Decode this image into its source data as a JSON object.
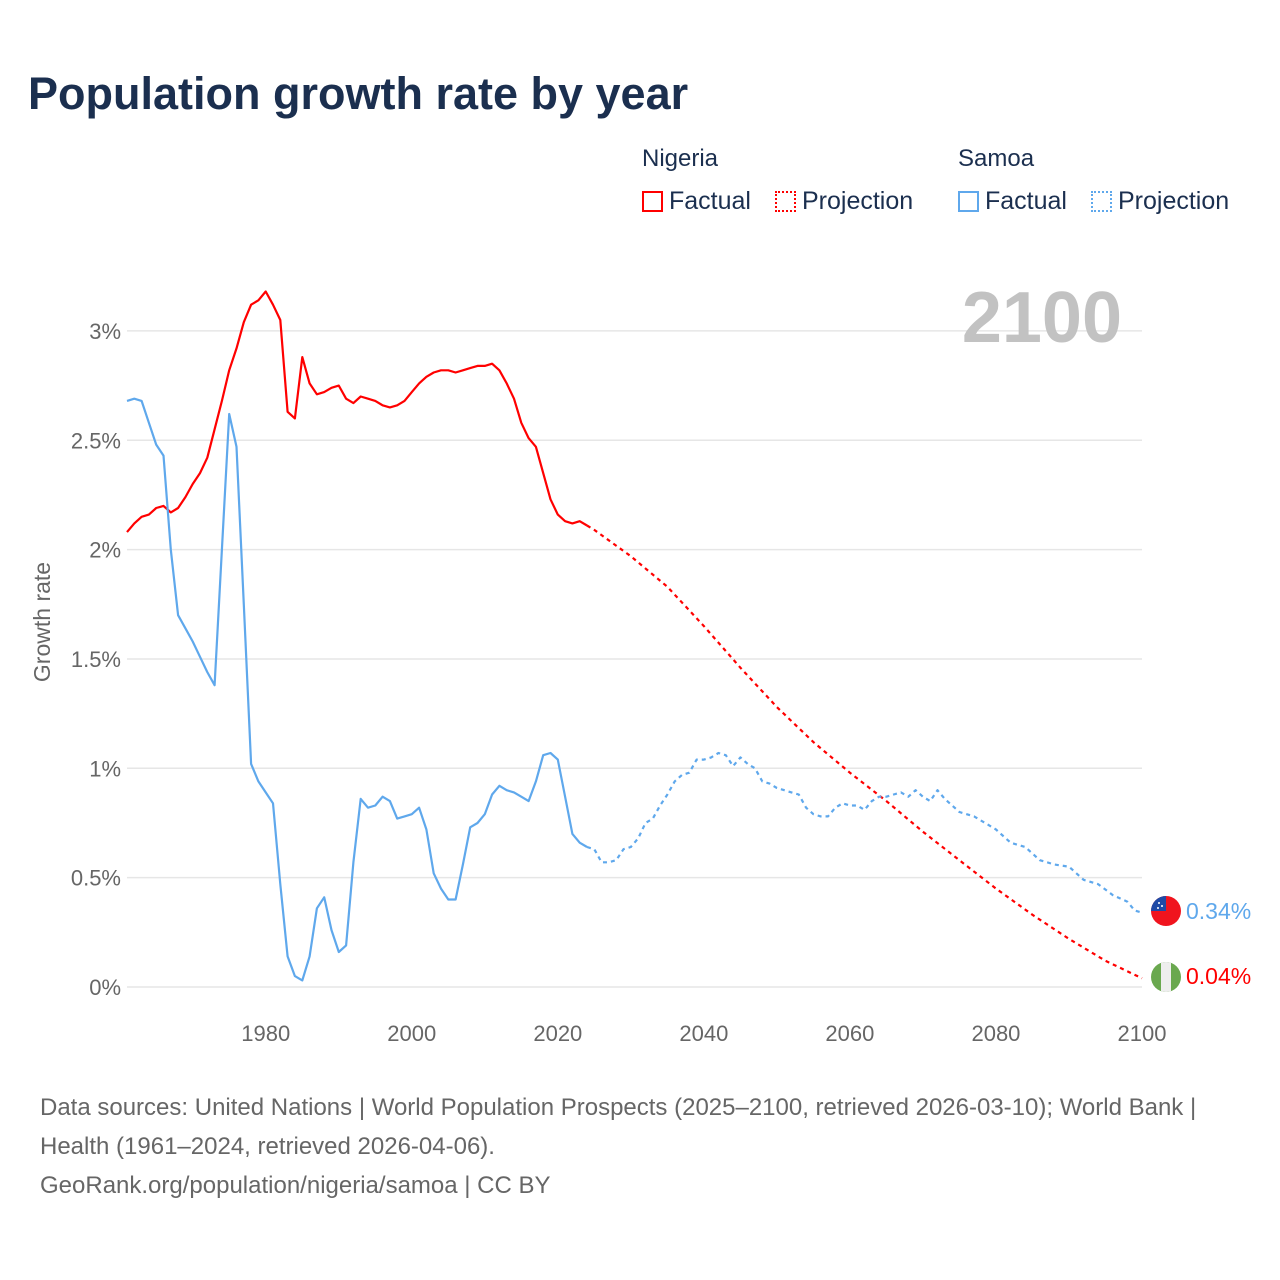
{
  "title": "Population growth rate by year",
  "legend": {
    "groups": [
      {
        "name": "Nigeria",
        "color": "#ff0000",
        "factual": "Factual",
        "projection": "Projection"
      },
      {
        "name": "Samoa",
        "color": "#5fa8ec",
        "factual": "Factual",
        "projection": "Projection"
      }
    ]
  },
  "year_display": "2100",
  "end_labels": {
    "samoa": "0.34%",
    "nigeria": "0.04%"
  },
  "footer": {
    "sources": "Data sources: United Nations | World Population Prospects (2025–2100, retrieved 2026-03-10); World Bank | Health (1961–2024, retrieved 2026-04-06).",
    "link": "GeoRank.org/population/nigeria/samoa | CC BY"
  },
  "chart_data": {
    "type": "line",
    "title": "Population growth rate by year",
    "xlabel": "",
    "ylabel": "Growth rate",
    "xlim": [
      1961,
      2100
    ],
    "ylim": [
      0,
      3.3
    ],
    "xticks": [
      1980,
      2000,
      2020,
      2040,
      2060,
      2080,
      2100
    ],
    "xtick_labels": [
      "1980",
      "2000",
      "2020",
      "2040",
      "2060",
      "2080",
      "2100"
    ],
    "yticks": [
      0,
      0.5,
      1,
      1.5,
      2,
      2.5,
      3
    ],
    "ytick_labels": [
      "0%",
      "0.5%",
      "1%",
      "1.5%",
      "2%",
      "2.5%",
      "3%"
    ],
    "grid": true,
    "legend_position": "top-right",
    "series": [
      {
        "name": "Nigeria Factual",
        "color": "#ff0000",
        "dashed": false,
        "x": [
          1961,
          1962,
          1963,
          1964,
          1965,
          1966,
          1967,
          1968,
          1969,
          1970,
          1971,
          1972,
          1973,
          1974,
          1975,
          1976,
          1977,
          1978,
          1979,
          1980,
          1981,
          1982,
          1983,
          1984,
          1985,
          1986,
          1987,
          1988,
          1989,
          1990,
          1991,
          1992,
          1993,
          1994,
          1995,
          1996,
          1997,
          1998,
          1999,
          2000,
          2001,
          2002,
          2003,
          2004,
          2005,
          2006,
          2007,
          2008,
          2009,
          2010,
          2011,
          2012,
          2013,
          2014,
          2015,
          2016,
          2017,
          2018,
          2019,
          2020,
          2021,
          2022,
          2023,
          2024
        ],
        "y": [
          2.08,
          2.12,
          2.15,
          2.16,
          2.19,
          2.2,
          2.17,
          2.19,
          2.24,
          2.3,
          2.35,
          2.42,
          2.55,
          2.68,
          2.82,
          2.92,
          3.04,
          3.12,
          3.14,
          3.18,
          3.12,
          3.05,
          2.63,
          2.6,
          2.88,
          2.76,
          2.71,
          2.72,
          2.74,
          2.75,
          2.69,
          2.67,
          2.7,
          2.69,
          2.68,
          2.66,
          2.65,
          2.66,
          2.68,
          2.72,
          2.76,
          2.79,
          2.81,
          2.82,
          2.82,
          2.81,
          2.82,
          2.83,
          2.84,
          2.84,
          2.85,
          2.82,
          2.76,
          2.69,
          2.58,
          2.51,
          2.47,
          2.35,
          2.23,
          2.16,
          2.13,
          2.12,
          2.13,
          2.11
        ]
      },
      {
        "name": "Nigeria Projection",
        "color": "#ff0000",
        "dashed": true,
        "x": [
          2024,
          2025,
          2030,
          2035,
          2040,
          2045,
          2050,
          2055,
          2060,
          2065,
          2070,
          2075,
          2080,
          2085,
          2090,
          2095,
          2100
        ],
        "y": [
          2.11,
          2.09,
          1.97,
          1.83,
          1.65,
          1.46,
          1.28,
          1.12,
          0.98,
          0.85,
          0.71,
          0.58,
          0.45,
          0.33,
          0.22,
          0.12,
          0.04
        ]
      },
      {
        "name": "Samoa Factual",
        "color": "#5fa8ec",
        "dashed": false,
        "x": [
          1961,
          1962,
          1963,
          1964,
          1965,
          1966,
          1967,
          1968,
          1969,
          1970,
          1971,
          1972,
          1973,
          1974,
          1975,
          1976,
          1977,
          1978,
          1979,
          1980,
          1981,
          1982,
          1983,
          1984,
          1985,
          1986,
          1987,
          1988,
          1989,
          1990,
          1991,
          1992,
          1993,
          1994,
          1995,
          1996,
          1997,
          1998,
          1999,
          2000,
          2001,
          2002,
          2003,
          2004,
          2005,
          2006,
          2007,
          2008,
          2009,
          2010,
          2011,
          2012,
          2013,
          2014,
          2015,
          2016,
          2017,
          2018,
          2019,
          2020,
          2021,
          2022,
          2023,
          2024
        ],
        "y": [
          2.68,
          2.69,
          2.68,
          2.58,
          2.48,
          2.43,
          2.0,
          1.7,
          1.64,
          1.58,
          1.51,
          1.44,
          1.38,
          2.0,
          2.62,
          2.47,
          1.75,
          1.02,
          0.94,
          0.89,
          0.84,
          0.47,
          0.14,
          0.05,
          0.03,
          0.14,
          0.36,
          0.41,
          0.26,
          0.16,
          0.19,
          0.57,
          0.86,
          0.82,
          0.83,
          0.87,
          0.85,
          0.77,
          0.78,
          0.79,
          0.82,
          0.72,
          0.52,
          0.45,
          0.4,
          0.4,
          0.56,
          0.73,
          0.75,
          0.79,
          0.88,
          0.92,
          0.9,
          0.89,
          0.87,
          0.85,
          0.94,
          1.06,
          1.07,
          1.04,
          0.87,
          0.7,
          0.66,
          0.64
        ]
      },
      {
        "name": "Samoa Projection",
        "color": "#5fa8ec",
        "dashed": true,
        "x": [
          2024,
          2025,
          2026,
          2027,
          2028,
          2029,
          2030,
          2031,
          2032,
          2033,
          2034,
          2035,
          2036,
          2037,
          2038,
          2039,
          2040,
          2041,
          2042,
          2043,
          2044,
          2045,
          2046,
          2047,
          2048,
          2049,
          2050,
          2052,
          2053,
          2054,
          2055,
          2056,
          2057,
          2058,
          2059,
          2060,
          2061,
          2062,
          2063,
          2064,
          2065,
          2066,
          2067,
          2068,
          2069,
          2070,
          2071,
          2072,
          2073,
          2075,
          2077,
          2080,
          2082,
          2084,
          2086,
          2088,
          2090,
          2092,
          2094,
          2096,
          2098,
          2099,
          2100
        ],
        "y": [
          0.64,
          0.63,
          0.57,
          0.57,
          0.58,
          0.63,
          0.64,
          0.68,
          0.75,
          0.77,
          0.83,
          0.88,
          0.94,
          0.97,
          0.98,
          1.04,
          1.04,
          1.05,
          1.07,
          1.06,
          1.01,
          1.05,
          1.02,
          1.0,
          0.94,
          0.93,
          0.91,
          0.89,
          0.88,
          0.82,
          0.79,
          0.78,
          0.78,
          0.82,
          0.84,
          0.83,
          0.83,
          0.81,
          0.85,
          0.87,
          0.87,
          0.88,
          0.89,
          0.87,
          0.9,
          0.87,
          0.85,
          0.9,
          0.86,
          0.8,
          0.78,
          0.72,
          0.66,
          0.64,
          0.58,
          0.56,
          0.55,
          0.49,
          0.47,
          0.42,
          0.39,
          0.35,
          0.34
        ]
      }
    ]
  }
}
